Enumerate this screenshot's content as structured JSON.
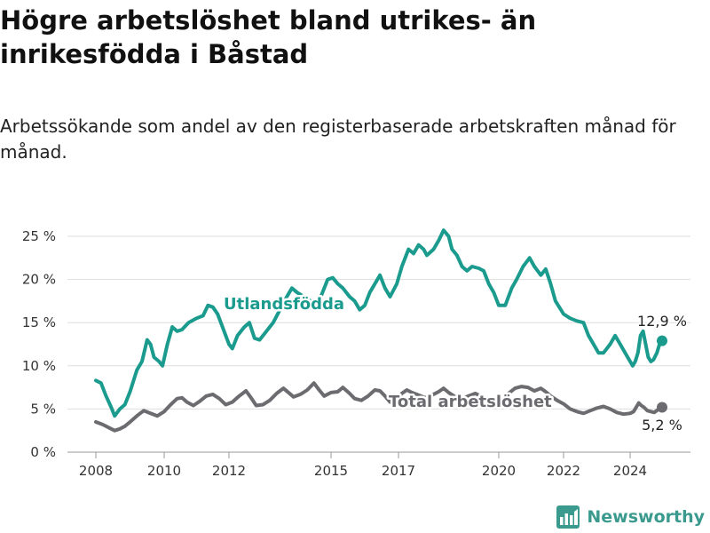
{
  "title": "Högre arbetslöshet bland utrikes- än inrikesfödda i Båstad",
  "subtitle": "Arbetssökande som andel av den registerbaserade arbetskraften månad för månad.",
  "brand": "Newsworthy",
  "colors": {
    "foreign": "#1a9b8d",
    "total": "#6b6b70",
    "grid": "#dddddd",
    "brand": "#3a9a8d"
  },
  "chart_data": {
    "type": "line",
    "x_ticks": [
      "2008",
      "2010",
      "2012",
      "2015",
      "2017",
      "2020",
      "2022",
      "2024"
    ],
    "y_ticks": [
      "0 %",
      "5 %",
      "10 %",
      "15 %",
      "20 %",
      "25 %"
    ],
    "ylim": [
      0,
      27
    ],
    "xlim": [
      2007.5,
      2025.5
    ],
    "grid": true,
    "series": [
      {
        "name": "Utlandsfödda",
        "end_label": "12,9 %",
        "points": [
          [
            2008.0,
            8.3
          ],
          [
            2008.15,
            8.0
          ],
          [
            2008.3,
            6.5
          ],
          [
            2008.45,
            5.2
          ],
          [
            2008.55,
            4.2
          ],
          [
            2008.7,
            5.0
          ],
          [
            2008.85,
            5.5
          ],
          [
            2009.0,
            7.0
          ],
          [
            2009.2,
            9.5
          ],
          [
            2009.35,
            10.5
          ],
          [
            2009.5,
            13.0
          ],
          [
            2009.6,
            12.5
          ],
          [
            2009.7,
            11.0
          ],
          [
            2009.85,
            10.5
          ],
          [
            2009.95,
            10.0
          ],
          [
            2010.1,
            12.5
          ],
          [
            2010.25,
            14.5
          ],
          [
            2010.4,
            14.0
          ],
          [
            2010.55,
            14.2
          ],
          [
            2010.75,
            15.0
          ],
          [
            2011.0,
            15.5
          ],
          [
            2011.2,
            15.8
          ],
          [
            2011.35,
            17.0
          ],
          [
            2011.5,
            16.8
          ],
          [
            2011.65,
            16.0
          ],
          [
            2011.8,
            14.5
          ],
          [
            2012.0,
            12.5
          ],
          [
            2012.1,
            12.0
          ],
          [
            2012.25,
            13.5
          ],
          [
            2012.45,
            14.5
          ],
          [
            2012.6,
            15.0
          ],
          [
            2012.75,
            13.2
          ],
          [
            2012.9,
            13.0
          ],
          [
            2013.1,
            14.0
          ],
          [
            2013.3,
            15.0
          ],
          [
            2013.5,
            16.5
          ],
          [
            2013.7,
            18.0
          ],
          [
            2013.85,
            19.0
          ],
          [
            2014.0,
            18.5
          ],
          [
            2014.2,
            18.0
          ],
          [
            2014.4,
            17.5
          ],
          [
            2014.6,
            17.0
          ],
          [
            2014.75,
            18.5
          ],
          [
            2014.9,
            20.0
          ],
          [
            2015.05,
            20.2
          ],
          [
            2015.2,
            19.5
          ],
          [
            2015.35,
            19.0
          ],
          [
            2015.55,
            18.0
          ],
          [
            2015.7,
            17.5
          ],
          [
            2015.85,
            16.5
          ],
          [
            2016.0,
            17.0
          ],
          [
            2016.15,
            18.5
          ],
          [
            2016.3,
            19.5
          ],
          [
            2016.45,
            20.5
          ],
          [
            2016.6,
            19.0
          ],
          [
            2016.75,
            18.0
          ],
          [
            2016.95,
            19.5
          ],
          [
            2017.1,
            21.5
          ],
          [
            2017.3,
            23.5
          ],
          [
            2017.45,
            23.0
          ],
          [
            2017.6,
            24.0
          ],
          [
            2017.75,
            23.5
          ],
          [
            2017.85,
            22.8
          ],
          [
            2018.05,
            23.5
          ],
          [
            2018.2,
            24.5
          ],
          [
            2018.35,
            25.7
          ],
          [
            2018.5,
            25.0
          ],
          [
            2018.6,
            23.5
          ],
          [
            2018.75,
            22.8
          ],
          [
            2018.9,
            21.5
          ],
          [
            2019.05,
            21.0
          ],
          [
            2019.2,
            21.5
          ],
          [
            2019.4,
            21.3
          ],
          [
            2019.55,
            21.0
          ],
          [
            2019.7,
            19.5
          ],
          [
            2019.85,
            18.5
          ],
          [
            2020.0,
            17.0
          ],
          [
            2020.2,
            17.0
          ],
          [
            2020.4,
            19.0
          ],
          [
            2020.55,
            20.0
          ],
          [
            2020.75,
            21.5
          ],
          [
            2020.95,
            22.5
          ],
          [
            2021.1,
            21.5
          ],
          [
            2021.3,
            20.5
          ],
          [
            2021.45,
            21.2
          ],
          [
            2021.6,
            19.5
          ],
          [
            2021.75,
            17.5
          ],
          [
            2022.0,
            16.0
          ],
          [
            2022.2,
            15.5
          ],
          [
            2022.4,
            15.2
          ],
          [
            2022.6,
            15.0
          ],
          [
            2022.75,
            13.5
          ],
          [
            2022.9,
            12.5
          ],
          [
            2023.05,
            11.5
          ],
          [
            2023.2,
            11.5
          ],
          [
            2023.4,
            12.5
          ],
          [
            2023.55,
            13.5
          ],
          [
            2023.7,
            12.5
          ],
          [
            2023.85,
            11.5
          ],
          [
            2024.0,
            10.5
          ],
          [
            2024.15,
            10.0
          ],
          [
            2024.3,
            10.5
          ],
          [
            2024.45,
            11.5
          ],
          [
            2024.6,
            13.5
          ],
          [
            2024.75,
            14.0
          ],
          [
            2024.9,
            12.5
          ],
          [
            2025.05,
            11.0
          ],
          [
            2025.2,
            10.5
          ],
          [
            2025.35,
            10.7
          ],
          [
            2025.55,
            11.5
          ],
          [
            2025.7,
            12.5
          ],
          [
            2025.85,
            12.9
          ]
        ]
      },
      {
        "name": "Total arbetslöshet",
        "end_label": "5,2 %",
        "points": [
          [
            2008.0,
            3.5
          ],
          [
            2008.2,
            3.2
          ],
          [
            2008.4,
            2.8
          ],
          [
            2008.55,
            2.5
          ],
          [
            2008.7,
            2.7
          ],
          [
            2008.85,
            3.0
          ],
          [
            2009.0,
            3.5
          ],
          [
            2009.2,
            4.2
          ],
          [
            2009.4,
            4.8
          ],
          [
            2009.6,
            4.5
          ],
          [
            2009.8,
            4.2
          ],
          [
            2010.0,
            4.7
          ],
          [
            2010.2,
            5.5
          ],
          [
            2010.4,
            6.2
          ],
          [
            2010.55,
            6.3
          ],
          [
            2010.7,
            5.8
          ],
          [
            2010.9,
            5.4
          ],
          [
            2011.1,
            5.9
          ],
          [
            2011.3,
            6.5
          ],
          [
            2011.5,
            6.7
          ],
          [
            2011.7,
            6.2
          ],
          [
            2011.9,
            5.5
          ],
          [
            2012.1,
            5.8
          ],
          [
            2012.3,
            6.5
          ],
          [
            2012.5,
            7.1
          ],
          [
            2012.65,
            6.3
          ],
          [
            2012.8,
            5.4
          ],
          [
            2013.0,
            5.5
          ],
          [
            2013.2,
            6.0
          ],
          [
            2013.4,
            6.8
          ],
          [
            2013.6,
            7.4
          ],
          [
            2013.75,
            6.9
          ],
          [
            2013.9,
            6.4
          ],
          [
            2014.1,
            6.7
          ],
          [
            2014.3,
            7.2
          ],
          [
            2014.5,
            8.0
          ],
          [
            2014.65,
            7.2
          ],
          [
            2014.8,
            6.5
          ],
          [
            2015.0,
            6.9
          ],
          [
            2015.2,
            7.0
          ],
          [
            2015.35,
            7.5
          ],
          [
            2015.55,
            6.8
          ],
          [
            2015.7,
            6.2
          ],
          [
            2015.9,
            6.0
          ],
          [
            2016.1,
            6.5
          ],
          [
            2016.3,
            7.2
          ],
          [
            2016.45,
            7.1
          ],
          [
            2016.6,
            6.5
          ],
          [
            2016.75,
            5.8
          ],
          [
            2016.9,
            6.0
          ],
          [
            2017.1,
            6.8
          ],
          [
            2017.25,
            7.2
          ],
          [
            2017.4,
            6.9
          ],
          [
            2017.6,
            6.6
          ],
          [
            2017.8,
            6.3
          ],
          [
            2018.0,
            6.6
          ],
          [
            2018.2,
            7.0
          ],
          [
            2018.35,
            7.4
          ],
          [
            2018.5,
            6.9
          ],
          [
            2018.7,
            6.4
          ],
          [
            2018.9,
            6.2
          ],
          [
            2019.1,
            6.5
          ],
          [
            2019.3,
            6.8
          ],
          [
            2019.5,
            6.4
          ],
          [
            2019.7,
            6.0
          ],
          [
            2019.9,
            6.1
          ],
          [
            2020.1,
            6.2
          ],
          [
            2020.3,
            6.8
          ],
          [
            2020.5,
            7.4
          ],
          [
            2020.7,
            7.6
          ],
          [
            2020.9,
            7.5
          ],
          [
            2021.1,
            7.1
          ],
          [
            2021.3,
            7.4
          ],
          [
            2021.45,
            7.0
          ],
          [
            2021.6,
            6.5
          ],
          [
            2021.8,
            6.0
          ],
          [
            2022.0,
            5.6
          ],
          [
            2022.2,
            5.0
          ],
          [
            2022.4,
            4.7
          ],
          [
            2022.6,
            4.5
          ],
          [
            2022.8,
            4.8
          ],
          [
            2023.0,
            5.1
          ],
          [
            2023.2,
            5.3
          ],
          [
            2023.4,
            5.0
          ],
          [
            2023.6,
            4.6
          ],
          [
            2023.8,
            4.4
          ],
          [
            2024.0,
            4.5
          ],
          [
            2024.2,
            4.7
          ],
          [
            2024.35,
            5.2
          ],
          [
            2024.5,
            5.7
          ],
          [
            2024.65,
            5.4
          ],
          [
            2024.8,
            5.2
          ],
          [
            2025.0,
            4.8
          ],
          [
            2025.2,
            4.7
          ],
          [
            2025.4,
            4.6
          ],
          [
            2025.6,
            4.9
          ],
          [
            2025.85,
            5.2
          ]
        ]
      }
    ]
  }
}
